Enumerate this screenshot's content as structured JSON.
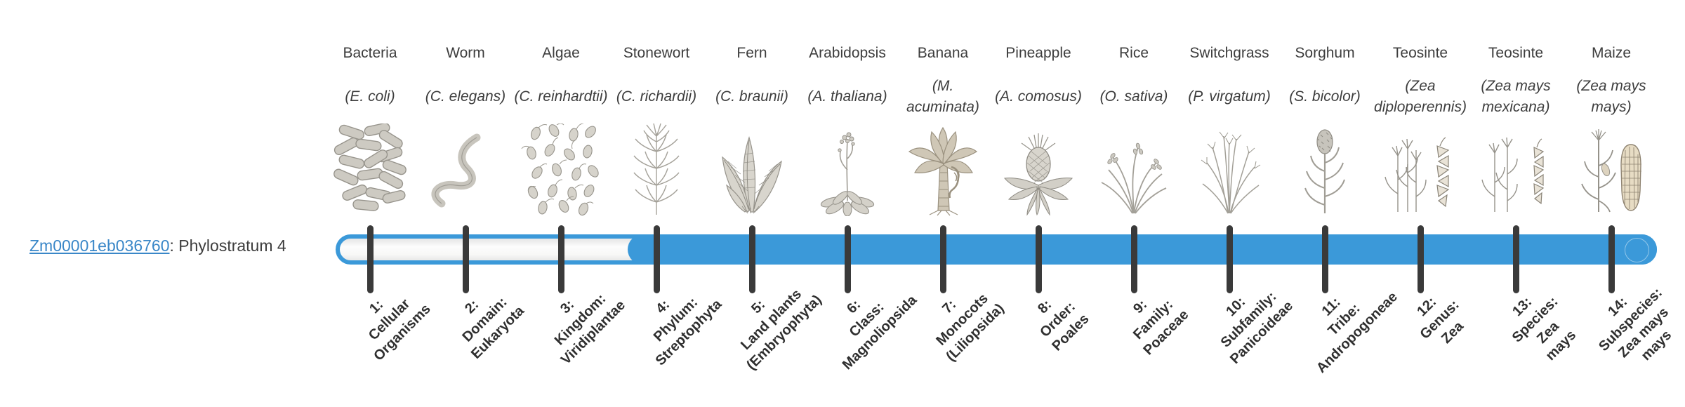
{
  "colors": {
    "bar_blue": "#3b99d9",
    "tick_color": "#3a3a3a",
    "link_color": "#3a87c8",
    "text_color": "#3d3d3d",
    "rank_color": "#2f2f2f"
  },
  "gene": {
    "id": "Zm00001eb036760",
    "separator": ": ",
    "phylostratum_label": "Phylostratum 4"
  },
  "timeline": {
    "filled_from_stratum": 4,
    "strata": [
      {
        "number": 1,
        "common_name": "Bacteria",
        "species": "(E. coli)",
        "rank_label_lines": [
          "1:",
          "Cellular",
          "Organisms"
        ],
        "icon": "bacteria-illustration"
      },
      {
        "number": 2,
        "common_name": "Worm",
        "species": "(C. elegans)",
        "rank_label_lines": [
          "2:",
          "Domain:",
          "Eukaryota"
        ],
        "icon": "worm-illustration"
      },
      {
        "number": 3,
        "common_name": "Algae",
        "species": "(C. reinhardtii)",
        "rank_label_lines": [
          "3:",
          "Kingdom:",
          "Viridiplantae"
        ],
        "icon": "algae-illustration"
      },
      {
        "number": 4,
        "common_name": "Stonewort",
        "species": "(C. richardii)",
        "rank_label_lines": [
          "4:",
          "Phylum:",
          "Streptophyta"
        ],
        "icon": "stonewort-illustration"
      },
      {
        "number": 5,
        "common_name": "Fern",
        "species": "(C. braunii)",
        "rank_label_lines": [
          "5:",
          "Land plants",
          "(Embryophyta)"
        ],
        "icon": "fern-illustration"
      },
      {
        "number": 6,
        "common_name": "Arabidopsis",
        "species": "(A. thaliana)",
        "rank_label_lines": [
          "6:",
          "Class:",
          "Magnoliopsida"
        ],
        "icon": "arabidopsis-illustration"
      },
      {
        "number": 7,
        "common_name": "Banana",
        "species": "(M. acuminata)",
        "rank_label_lines": [
          "7:",
          "Monocots",
          "(Liliopsida)"
        ],
        "icon": "banana-illustration"
      },
      {
        "number": 8,
        "common_name": "Pineapple",
        "species": "(A. comosus)",
        "rank_label_lines": [
          "8:",
          "Order:",
          "Poales"
        ],
        "icon": "pineapple-illustration"
      },
      {
        "number": 9,
        "common_name": "Rice",
        "species": "(O. sativa)",
        "rank_label_lines": [
          "9:",
          "Family:",
          "Poaceae"
        ],
        "icon": "rice-illustration"
      },
      {
        "number": 10,
        "common_name": "Switchgrass",
        "species": "(P. virgatum)",
        "rank_label_lines": [
          "10:",
          "Subfamily:",
          "Panicoideae"
        ],
        "icon": "switchgrass-illustration"
      },
      {
        "number": 11,
        "common_name": "Sorghum",
        "species": "(S. bicolor)",
        "rank_label_lines": [
          "11:",
          "Tribe:",
          "Andropogoneae"
        ],
        "icon": "sorghum-illustration"
      },
      {
        "number": 12,
        "common_name": "Teosinte",
        "species": "(Zea diploperennis)",
        "rank_label_lines": [
          "12:",
          "Genus:",
          "Zea"
        ],
        "icon": "teosinte-diploperennis-illustration"
      },
      {
        "number": 13,
        "common_name": "Teosinte",
        "species": "(Zea mays mexicana)",
        "rank_label_lines": [
          "13:",
          "Species:",
          "Zea",
          "mays"
        ],
        "icon": "teosinte-mexicana-illustration"
      },
      {
        "number": 14,
        "common_name": "Maize",
        "species": "(Zea mays mays)",
        "rank_label_lines": [
          "14:",
          "Subspecies:",
          "Zea mays",
          "mays"
        ],
        "icon": "maize-illustration"
      }
    ]
  }
}
